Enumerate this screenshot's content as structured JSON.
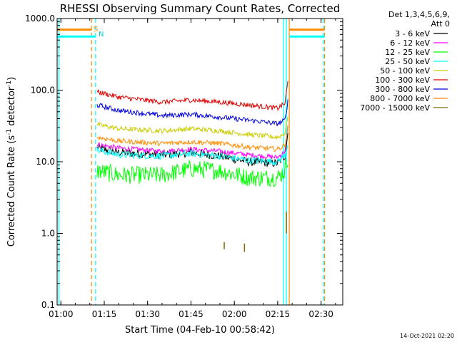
{
  "chart_data": {
    "type": "line",
    "title": "RHESSI Observing Summary Count Rates, Corrected",
    "xlabel": "Start Time (04-Feb-10 00:58:42)",
    "ylabel_main": "Corrected Count Rate (s",
    "ylabel_sup": "-1",
    "ylabel_mid": " detector",
    "ylabel_sup2": "-1",
    "ylabel_end": ")",
    "y_scale": "log",
    "xlim": [
      58.7,
      157.5
    ],
    "ylim": [
      0.1,
      1000
    ],
    "x_ticks": [
      {
        "v": 60,
        "label": "01:00"
      },
      {
        "v": 75,
        "label": "01:15"
      },
      {
        "v": 90,
        "label": "01:30"
      },
      {
        "v": 105,
        "label": "01:45"
      },
      {
        "v": 120,
        "label": "02:00"
      },
      {
        "v": 135,
        "label": "02:15"
      },
      {
        "v": 150,
        "label": "02:30"
      }
    ],
    "y_ticks": [
      {
        "v": 1000,
        "label": "1000.0"
      },
      {
        "v": 100,
        "label": "100.0"
      },
      {
        "v": 10,
        "label": "10.0"
      },
      {
        "v": 1,
        "label": "1.0"
      },
      {
        "v": 0.1,
        "label": "0.1"
      }
    ],
    "legend_header": [
      "Det 1,3,4,5,6,9,",
      "Att 0"
    ],
    "legend_placement": "right",
    "timestamp": "14-Oct-2021 02:20",
    "flag_labels": {
      "saa": "S",
      "night": "N"
    },
    "series": [
      {
        "name": "3 - 6 keV",
        "color": "#000000",
        "x": [
          72.5,
          80,
          95,
          105,
          115,
          125,
          135,
          137.5,
          138.5
        ],
        "y": [
          15.5,
          13.5,
          12.5,
          13.5,
          12.0,
          10.0,
          9.5,
          12.0,
          25.0
        ]
      },
      {
        "name": "6 - 12 keV",
        "color": "#ff00ff",
        "x": [
          72.5,
          80,
          95,
          105,
          115,
          125,
          135,
          137.5,
          138.5
        ],
        "y": [
          17.5,
          15.5,
          14.0,
          15.0,
          14.0,
          12.5,
          11.5,
          14.0,
          30.0
        ]
      },
      {
        "name": "12 - 25 keV",
        "color": "#00ff00",
        "x": [
          72.5,
          80,
          95,
          105,
          115,
          125,
          135,
          137.5,
          138.5
        ],
        "y": [
          7.5,
          6.5,
          6.5,
          8.0,
          7.5,
          6.0,
          6.0,
          7.5,
          12.0
        ]
      },
      {
        "name": "25 - 50 keV",
        "color": "#00ffff",
        "x": [
          72.5,
          80,
          95,
          105,
          115,
          125,
          135,
          137.5,
          138.5
        ],
        "y": [
          14.5,
          12.5,
          12.0,
          13.0,
          12.0,
          10.5,
          10.0,
          12.5,
          18.0
        ]
      },
      {
        "name": "50 - 100 keV",
        "color": "#cccc00",
        "x": [
          72.5,
          80,
          95,
          105,
          115,
          125,
          135,
          137.5,
          138.5
        ],
        "y": [
          33.0,
          29.0,
          27.0,
          29.0,
          27.0,
          24.0,
          22.0,
          25.0,
          45.0
        ]
      },
      {
        "name": "100 - 300 keV",
        "color": "#dd0000",
        "x": [
          72.5,
          80,
          95,
          105,
          115,
          125,
          135,
          137.5,
          138.5
        ],
        "y": [
          95.0,
          80.0,
          68.0,
          73.0,
          68.0,
          62.0,
          56.0,
          65.0,
          130.0
        ]
      },
      {
        "name": "300 - 800 keV",
        "color": "#0000dd",
        "x": [
          72.5,
          80,
          95,
          105,
          115,
          125,
          135,
          137.5,
          138.5
        ],
        "y": [
          62.0,
          52.0,
          44.0,
          46.0,
          42.0,
          38.0,
          34.0,
          38.0,
          70.0
        ]
      },
      {
        "name": "800 - 7000 keV",
        "color": "#ff8c00",
        "x": [
          72.5,
          80,
          95,
          105,
          115,
          125,
          135,
          137.5,
          138.5
        ],
        "y": [
          22.0,
          19.5,
          18.0,
          19.0,
          18.0,
          16.0,
          15.0,
          17.0,
          30.0
        ]
      },
      {
        "name": "7000 - 15000 keV",
        "color": "#7a6a00",
        "x": [
          116.5,
          116.5,
          123.5,
          123.5,
          138.0,
          138.0
        ],
        "y": [
          0.6,
          0.75,
          0.55,
          0.72,
          1.0,
          2.0
        ]
      }
    ],
    "annotations": [
      {
        "type": "vline",
        "x": 59.3,
        "color": "#00ffff",
        "style": "solid"
      },
      {
        "type": "vline",
        "x": 70.6,
        "color": "#ff8c00",
        "style": "dashed"
      },
      {
        "type": "vline",
        "x": 72.0,
        "color": "#00ffff",
        "style": "dashed"
      },
      {
        "type": "vline",
        "x": 137.0,
        "color": "#00ffff",
        "style": "solid"
      },
      {
        "type": "vline",
        "x": 138.0,
        "color": "#00ffff",
        "style": "solid"
      },
      {
        "type": "vline",
        "x": 139.0,
        "color": "#ff8c00",
        "style": "solid"
      },
      {
        "type": "vline",
        "x": 150.7,
        "color": "#00ffff",
        "style": "dashed"
      },
      {
        "type": "vline",
        "x": 151.2,
        "color": "#ff8c00",
        "style": "dashed"
      },
      {
        "type": "hbar",
        "x0": 58.7,
        "x1": 70.6,
        "y": 700,
        "color": "#ff8c00"
      },
      {
        "type": "hbar",
        "x0": 58.7,
        "x1": 72.0,
        "y": 560,
        "color": "#00ffff"
      },
      {
        "type": "hbar",
        "x0": 139.0,
        "x1": 151.2,
        "y": 700,
        "color": "#ff8c00"
      },
      {
        "type": "hbar",
        "x0": 139.0,
        "x1": 151.2,
        "y": 560,
        "color": "#00ffff"
      }
    ]
  }
}
